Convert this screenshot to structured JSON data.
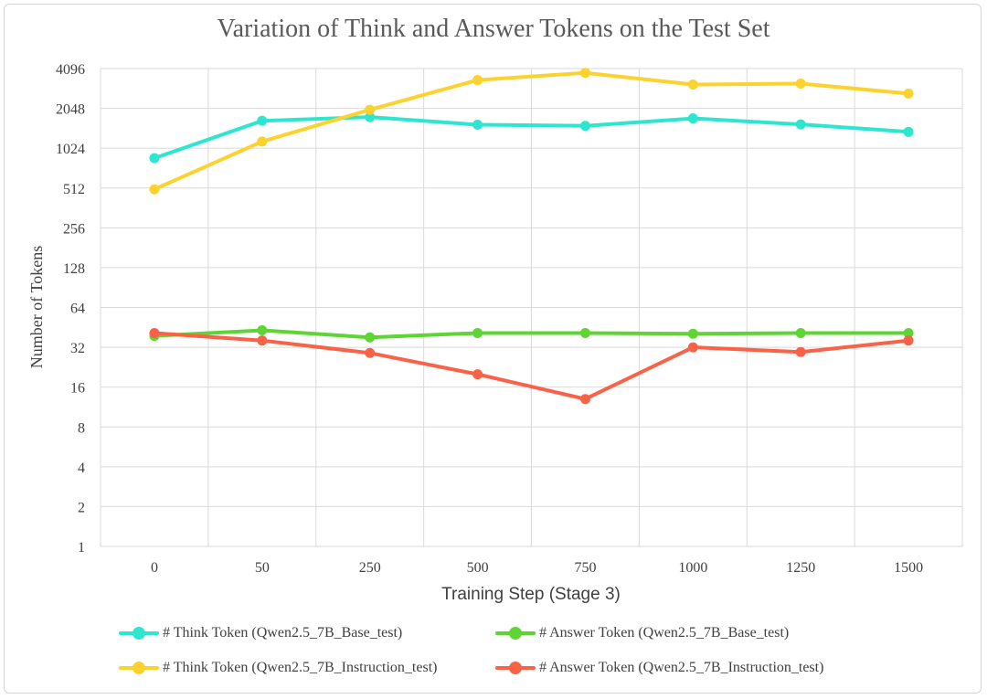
{
  "chart_data": {
    "type": "line",
    "title": "Variation of Think and Answer Tokens on the Test Set",
    "xlabel": "Training Step (Stage 3)",
    "ylabel": "Number of Tokens",
    "y_scale": "log2",
    "ylim": [
      1,
      4096
    ],
    "y_ticks": [
      "1",
      "2",
      "4",
      "8",
      "16",
      "32",
      "64",
      "128",
      "256",
      "512",
      "1024",
      "2048",
      "4096"
    ],
    "categories": [
      "0",
      "50",
      "250",
      "500",
      "750",
      "1000",
      "1250",
      "1500"
    ],
    "grid": true,
    "legend_position": "bottom",
    "series": [
      {
        "name": "# Think Token (Qwen2.5_7B_Base_test)",
        "color": "#2ee6d0",
        "values": [
          860,
          1650,
          1760,
          1540,
          1510,
          1720,
          1550,
          1360
        ]
      },
      {
        "name": "# Answer Token (Qwen2.5_7B_Base_test)",
        "color": "#5fd435",
        "values": [
          39,
          43,
          38,
          41,
          41,
          40.5,
          41,
          41
        ]
      },
      {
        "name": "# Think Token (Qwen2.5_7B_Instruction_test)",
        "color": "#fcd22f",
        "values": [
          500,
          1150,
          2000,
          3350,
          3800,
          3100,
          3150,
          2650
        ]
      },
      {
        "name": "# Answer Token (Qwen2.5_7B_Instruction_test)",
        "color": "#fa6247",
        "values": [
          41,
          36,
          29,
          20,
          13,
          32,
          29.5,
          36
        ]
      }
    ]
  }
}
